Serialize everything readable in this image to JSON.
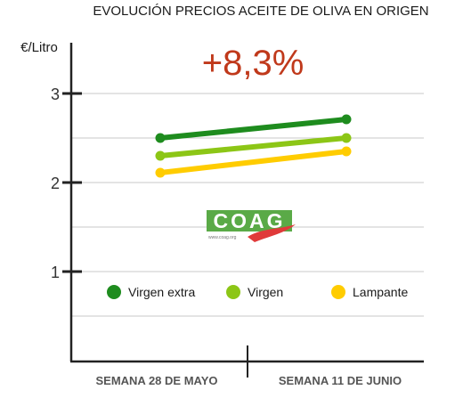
{
  "chart_data": {
    "type": "line",
    "title": "EVOLUCIÓN PRECIOS ACEITE DE OLIVA EN ORIGEN",
    "ylabel": "€/Litro",
    "xlabel": "",
    "categories": [
      "SEMANA 28 DE MAYO",
      "SEMANA 11 DE JUNIO"
    ],
    "ylim": [
      0.0,
      3.2
    ],
    "yticks": [
      1,
      2,
      3
    ],
    "grid": true,
    "legend_placement": "bottom",
    "annotation": "+8,3%",
    "series": [
      {
        "name": "Virgen extra",
        "values": [
          2.5,
          2.71
        ],
        "color": "#1e8c1e"
      },
      {
        "name": "Virgen",
        "values": [
          2.3,
          2.5
        ],
        "color": "#8cc616"
      },
      {
        "name": "Lampante",
        "values": [
          2.11,
          2.35
        ],
        "color": "#ffcc00"
      }
    ]
  },
  "logo": {
    "text": "COAG",
    "subtext": "www.coag.org",
    "colors": [
      "#5aaa47",
      "#e03a3a"
    ]
  }
}
